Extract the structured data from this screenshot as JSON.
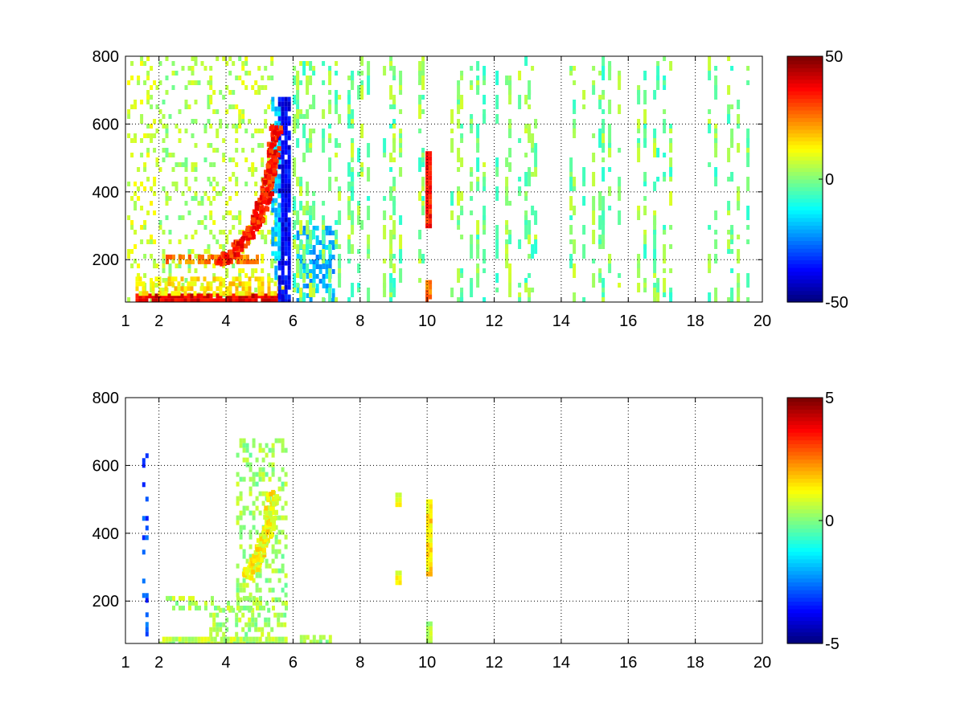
{
  "chart_data": [
    {
      "type": "heatmap",
      "title": "",
      "xlabel": "",
      "ylabel": "",
      "xlim": [
        1,
        20
      ],
      "ylim": [
        75,
        800
      ],
      "x_ticks": [
        1,
        2,
        4,
        6,
        8,
        10,
        12,
        14,
        16,
        18,
        20
      ],
      "y_ticks": [
        200,
        400,
        600,
        800
      ],
      "grid": true,
      "colormap": "jet",
      "colorbar": {
        "min": -50,
        "max": 50,
        "ticks": [
          50,
          0,
          -50
        ]
      },
      "features": [
        {
          "x": [
            1.05,
            1.9
          ],
          "y": [
            75,
            800
          ],
          "value": 8,
          "density": 0.25,
          "note_free": true
        },
        {
          "x": [
            1.9,
            3.5
          ],
          "y": [
            75,
            800
          ],
          "value": 4,
          "density": 0.18
        },
        {
          "x": [
            3.5,
            5.5
          ],
          "y": [
            75,
            800
          ],
          "value": 6,
          "density": 0.22
        },
        {
          "x": [
            1.3,
            5.8
          ],
          "y": [
            75,
            100
          ],
          "value": 40,
          "density": 0.95
        },
        {
          "x": [
            1.3,
            5.8
          ],
          "y": [
            100,
            150
          ],
          "value": 15,
          "density": 0.6
        },
        {
          "x": [
            2.2,
            5.0
          ],
          "y": [
            190,
            215
          ],
          "value": 25,
          "density": 0.7
        },
        {
          "x": [
            5.55,
            5.85
          ],
          "y": [
            75,
            680
          ],
          "value": -38,
          "density": 0.9
        },
        {
          "x": [
            5.35,
            5.55
          ],
          "y": [
            150,
            680
          ],
          "value": -18,
          "density": 0.6
        },
        {
          "x": [
            6.1,
            7.2
          ],
          "y": [
            75,
            300
          ],
          "value": -20,
          "density": 0.5
        },
        {
          "x": [
            9.95,
            10.1
          ],
          "y": [
            300,
            520
          ],
          "value": 35,
          "density": 1.0
        },
        {
          "x": [
            9.95,
            10.1
          ],
          "y": [
            75,
            140
          ],
          "value": 25,
          "density": 0.9
        },
        {
          "x": [
            5.8,
            20
          ],
          "y": [
            75,
            800
          ],
          "value": 0,
          "density": 0.08
        }
      ],
      "ridges": [
        {
          "points": [
            [
              3.8,
              200
            ],
            [
              4.2,
              230
            ],
            [
              4.6,
              280
            ],
            [
              4.9,
              330
            ],
            [
              5.1,
              390
            ],
            [
              5.25,
              450
            ],
            [
              5.35,
              520
            ],
            [
              5.45,
              600
            ]
          ],
          "value": 35
        }
      ]
    },
    {
      "type": "heatmap",
      "title": "",
      "xlabel": "",
      "ylabel": "",
      "xlim": [
        1,
        20
      ],
      "ylim": [
        75,
        800
      ],
      "x_ticks": [
        1,
        2,
        4,
        6,
        8,
        10,
        12,
        14,
        16,
        18,
        20
      ],
      "y_ticks": [
        200,
        400,
        600,
        800
      ],
      "grid": true,
      "colormap": "jet",
      "colorbar": {
        "min": -5,
        "max": 5,
        "ticks": [
          5,
          0,
          -5
        ]
      },
      "features": [
        {
          "x": [
            2.0,
            5.8
          ],
          "y": [
            75,
            95
          ],
          "value": 0.5,
          "density": 0.9
        },
        {
          "x": [
            3.5,
            5.8
          ],
          "y": [
            95,
            180
          ],
          "value": 0.4,
          "density": 0.4
        },
        {
          "x": [
            2.2,
            5.8
          ],
          "y": [
            185,
            215
          ],
          "value": 0.4,
          "density": 0.45
        },
        {
          "x": [
            6.2,
            7.2
          ],
          "y": [
            75,
            100
          ],
          "value": 0.4,
          "density": 0.7
        },
        {
          "x": [
            4.3,
            5.8
          ],
          "y": [
            200,
            680
          ],
          "value": 0.3,
          "density": 0.3
        },
        {
          "x": [
            9.97,
            10.08
          ],
          "y": [
            280,
            500
          ],
          "value": 1.5,
          "density": 1.0
        },
        {
          "x": [
            9.97,
            10.08
          ],
          "y": [
            80,
            140
          ],
          "value": 0.6,
          "density": 1.0
        },
        {
          "x": [
            9.05,
            9.15
          ],
          "y": [
            250,
            290
          ],
          "value": 1.0,
          "density": 1.0
        },
        {
          "x": [
            9.05,
            9.15
          ],
          "y": [
            480,
            520
          ],
          "value": 1.0,
          "density": 1.0
        },
        {
          "x": [
            1.5,
            1.6
          ],
          "y": [
            90,
            650
          ],
          "value": -3,
          "density": 0.2
        }
      ],
      "ridges": [
        {
          "points": [
            [
              4.6,
              280
            ],
            [
              4.9,
              330
            ],
            [
              5.1,
              390
            ],
            [
              5.25,
              450
            ],
            [
              5.35,
              520
            ]
          ],
          "value": 1.2
        }
      ]
    }
  ]
}
